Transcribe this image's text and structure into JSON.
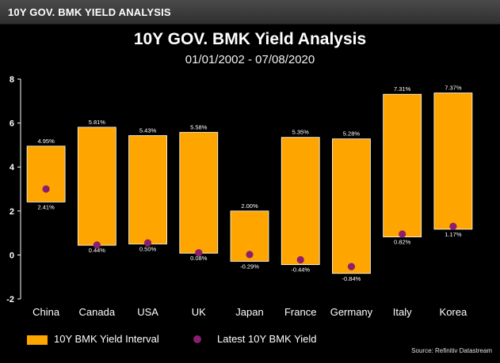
{
  "header": {
    "tab_title": "10Y GOV. BMK YIELD ANALYSIS"
  },
  "chart_data": {
    "type": "bar",
    "title": "10Y GOV. BMK Yield Analysis",
    "subtitle": "01/01/2002 - 07/08/2020",
    "categories": [
      "China",
      "Canada",
      "USA",
      "UK",
      "Japan",
      "France",
      "Germany",
      "Italy",
      "Korea"
    ],
    "high": [
      4.95,
      5.81,
      5.43,
      5.58,
      2.0,
      5.35,
      5.28,
      7.31,
      7.37
    ],
    "low": [
      2.41,
      0.44,
      0.5,
      0.08,
      -0.29,
      -0.44,
      -0.84,
      0.82,
      1.17
    ],
    "high_labels": [
      "4.95%",
      "5.81%",
      "5.43%",
      "5.58%",
      "2.00%",
      "5.35%",
      "5.28%",
      "7.31%",
      "7.37%"
    ],
    "low_labels": [
      "2.41%",
      "0.44%",
      "0.50%",
      "0.08%",
      "-0.29%",
      "-0.44%",
      "-0.84%",
      "0.82%",
      "1.17%"
    ],
    "latest": [
      3.0,
      0.45,
      0.55,
      0.1,
      0.02,
      -0.22,
      -0.53,
      0.95,
      1.3
    ],
    "ylim": [
      -2,
      8
    ],
    "yticks": [
      -2,
      0,
      2,
      4,
      6,
      8
    ],
    "ytick_labels": [
      "-2",
      "0",
      "2",
      "4",
      "6",
      "8"
    ],
    "grid": false,
    "legend_placement": "bottom-left",
    "series": [
      {
        "name": "10Y BMK Yield Interval"
      },
      {
        "name": "Latest 10Y BMK Yield"
      }
    ],
    "colors": {
      "interval": "#FFA500",
      "latest": "#8B1E6E",
      "axis": "#ffffff"
    },
    "source": "Source: Refinitiv Datastream"
  }
}
